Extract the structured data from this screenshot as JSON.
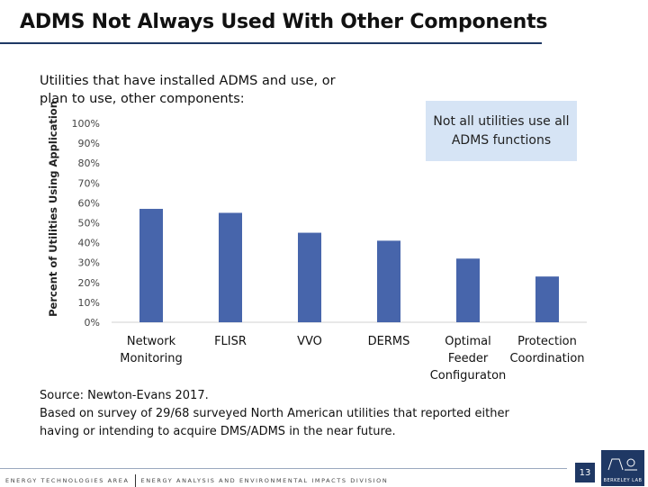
{
  "page": {
    "title": "ADMS Not Always Used With Other Components",
    "subtitle": "Utilities that have installed ADMS and use, or plan to use, other components:",
    "callout": "Not all utilities use all ADMS functions",
    "source_lines": [
      "Source: Newton-Evans 2017.",
      "Based on survey of 29/68 surveyed North American utilities that reported either having or intending to acquire DMS/ADMS in the near future."
    ],
    "footer_left_1": "ENERGY TECHNOLOGIES AREA",
    "footer_left_2": "ENERGY ANALYSIS AND ENVIRONMENTAL IMPACTS DIVISION",
    "page_number": "13",
    "logo_text": "BERKELEY LAB"
  },
  "chart_data": {
    "type": "bar",
    "categories": [
      "Network Monitoring",
      "FLISR",
      "VVO",
      "DERMS",
      "Optimal Feeder Configuraton",
      "Protection Coordination"
    ],
    "category_lines": [
      [
        "Network",
        "Monitoring"
      ],
      [
        "FLISR"
      ],
      [
        "VVO"
      ],
      [
        "DERMS"
      ],
      [
        "Optimal",
        "Feeder",
        "Configuraton"
      ],
      [
        "Protection",
        "Coordination"
      ]
    ],
    "values": [
      57,
      55,
      45,
      41,
      32,
      23
    ],
    "ylabel": "Percent of Utilities Using Application",
    "ylim": [
      0,
      100
    ],
    "yticks": [
      "0%",
      "10%",
      "20%",
      "30%",
      "40%",
      "50%",
      "60%",
      "70%",
      "80%",
      "90%",
      "100%"
    ],
    "bar_color": "#4765ab",
    "grid": false,
    "legend": "none"
  }
}
